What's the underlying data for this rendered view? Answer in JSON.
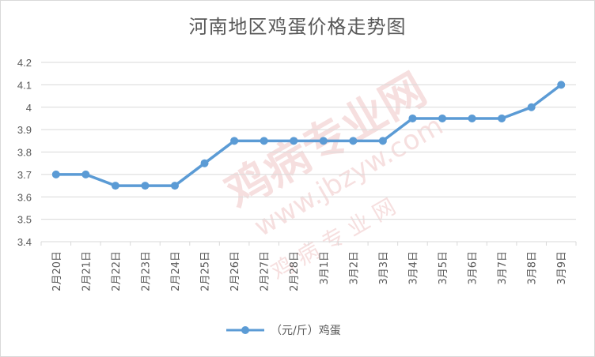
{
  "chart_data": {
    "type": "line",
    "title": "河南地区鸡蛋价格走势图",
    "categories": [
      "2月20日",
      "2月21日",
      "2月22日",
      "2月23日",
      "2月24日",
      "2月25日",
      "2月26日",
      "2月27日",
      "2月28日",
      "3月1日",
      "3月2日",
      "3月3日",
      "3月4日",
      "3月5日",
      "3月6日",
      "3月7日",
      "3月8日",
      "3月9日"
    ],
    "series": [
      {
        "name": "（元/斤）鸡蛋",
        "values": [
          3.7,
          3.7,
          3.65,
          3.65,
          3.65,
          3.75,
          3.85,
          3.85,
          3.85,
          3.85,
          3.85,
          3.85,
          3.95,
          3.95,
          3.95,
          3.95,
          4.0,
          4.1
        ],
        "color": "#5b9bd5"
      }
    ],
    "ylim": [
      3.4,
      4.2
    ],
    "yticks": [
      3.4,
      3.5,
      3.6,
      3.7,
      3.8,
      3.9,
      4,
      4.1,
      4.2
    ],
    "ytick_labels": [
      "3.4",
      "3.5",
      "3.6",
      "3.7",
      "3.8",
      "3.9",
      "4",
      "4.1",
      "4.2"
    ],
    "xlabel": "",
    "ylabel": "",
    "grid": true,
    "legend_position": "bottom"
  },
  "watermark": {
    "main": "鸡病专业网",
    "url": "www.jbzyw.com",
    "sub": "鸡 病 专 业 网"
  },
  "colors": {
    "gridline": "#d9d9d9",
    "text": "#595959",
    "series": "#5b9bd5",
    "watermark": "#e8a6a6"
  }
}
